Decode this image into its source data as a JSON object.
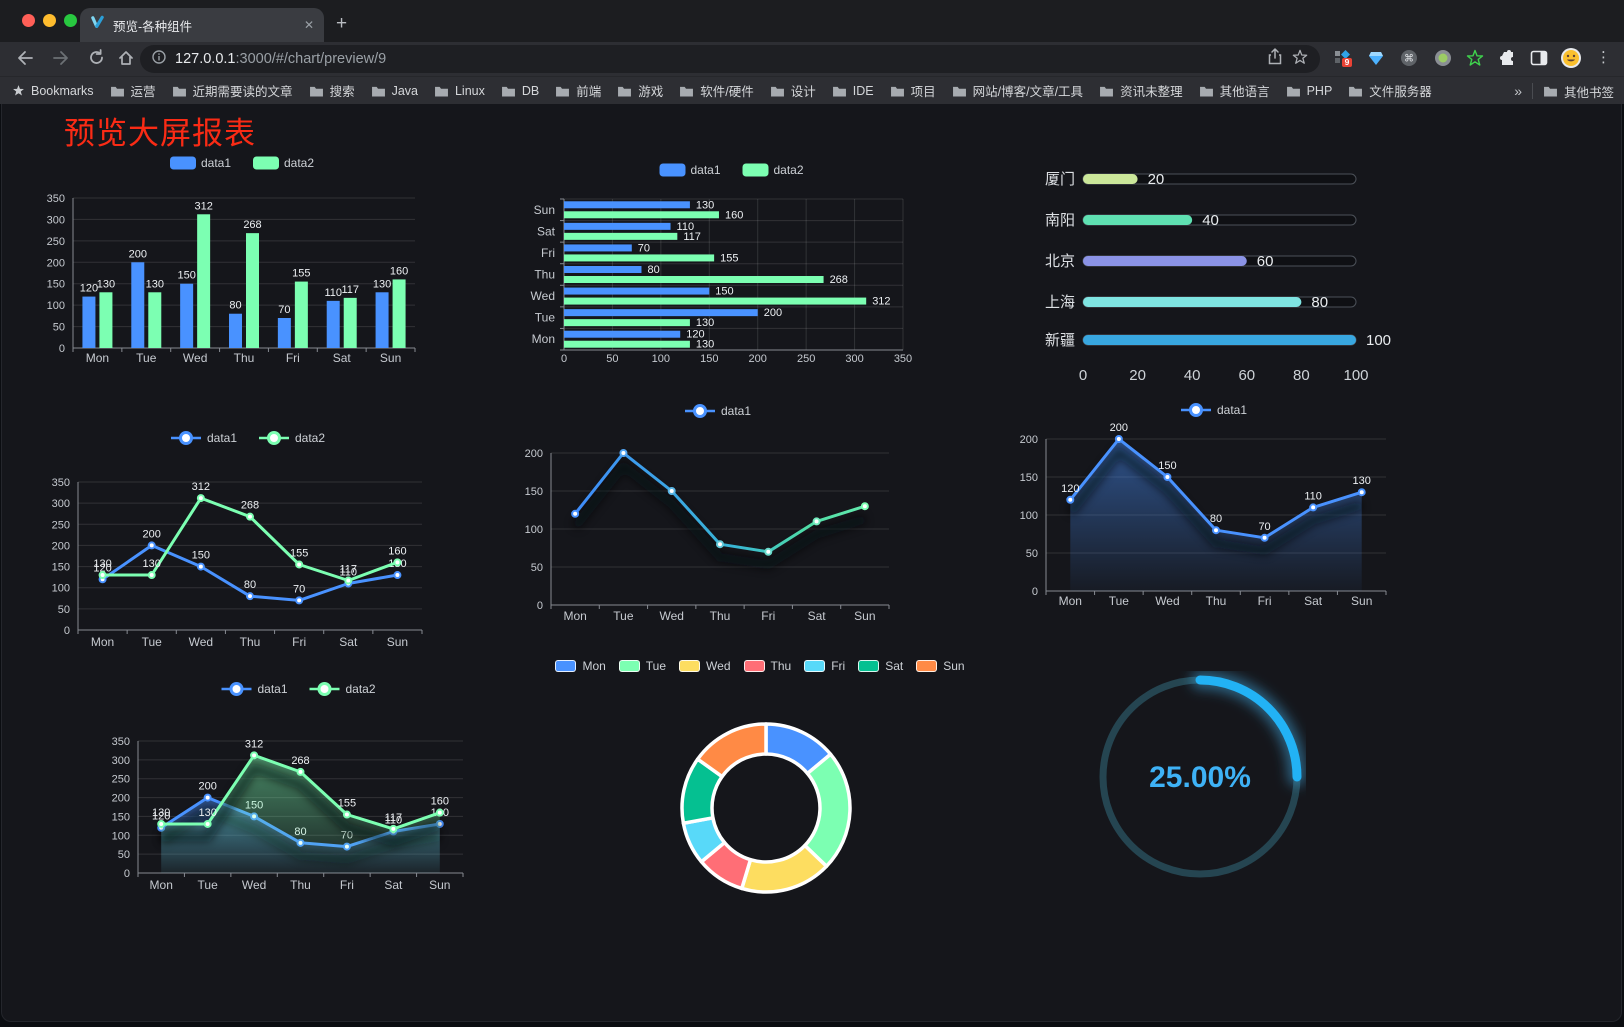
{
  "browser": {
    "tab_title": "预览-各种组件",
    "new_tab": "+",
    "close_tab": "✕",
    "url_host": "127.0.0.1",
    "url_rest": ":3000/#/chart/preview/9",
    "extension_badge": "9",
    "bookmarks_label": "Bookmarks",
    "bookmarks": [
      "运营",
      "近期需要读的文章",
      "搜索",
      "Java",
      "Linux",
      "DB",
      "前端",
      "游戏",
      "软件/硬件",
      "设计",
      "IDE",
      "项目",
      "网站/博客/文章/工具",
      "资讯未整理",
      "其他语言",
      "PHP",
      "文件服务器"
    ],
    "bookmarks_overflow": "»",
    "other_bookmarks": "其他书签"
  },
  "page": {
    "title": "预览大屏报表",
    "title_color": "#fa2b15",
    "background": "#15161b"
  },
  "palette": {
    "data1": "#4992ff",
    "data2": "#7cffb2",
    "axis": "#878b92",
    "grid": "rgba(255,255,255,0.12)",
    "tick_text": "#c6cad0",
    "value_label": "#edf0f3"
  },
  "chart_data": [
    {
      "id": "bar-grouped",
      "type": "bar",
      "orientation": "vertical",
      "categories": [
        "Mon",
        "Tue",
        "Wed",
        "Thu",
        "Fri",
        "Sat",
        "Sun"
      ],
      "series": [
        {
          "name": "data1",
          "color": "#4992ff",
          "values": [
            120,
            200,
            150,
            80,
            70,
            110,
            130
          ]
        },
        {
          "name": "data2",
          "color": "#7cffb2",
          "values": [
            130,
            130,
            312,
            268,
            155,
            117,
            160
          ]
        }
      ],
      "ylim": [
        0,
        350
      ],
      "ytick_step": 50,
      "value_labels": true,
      "legend_position": "top",
      "grid": true
    },
    {
      "id": "bar-horizontal",
      "type": "bar",
      "orientation": "horizontal",
      "categories": [
        "Mon",
        "Tue",
        "Wed",
        "Thu",
        "Fri",
        "Sat",
        "Sun"
      ],
      "display_order_top_to_bottom": [
        "Sun",
        "Sat",
        "Fri",
        "Thu",
        "Wed",
        "Tue",
        "Mon"
      ],
      "series": [
        {
          "name": "data1",
          "color": "#4992ff",
          "values": [
            120,
            200,
            150,
            80,
            70,
            110,
            130
          ]
        },
        {
          "name": "data2",
          "color": "#7cffb2",
          "values": [
            130,
            130,
            312,
            268,
            155,
            117,
            160
          ]
        }
      ],
      "xlim": [
        0,
        350
      ],
      "xtick_step": 50,
      "value_labels": true,
      "legend_position": "top",
      "grid": true
    },
    {
      "id": "capsule-bars",
      "type": "bar",
      "style": "capsule",
      "items": [
        {
          "label": "厦门",
          "value": 20,
          "color": "#cbe79a"
        },
        {
          "label": "南阳",
          "value": 40,
          "color": "#5fe0b2"
        },
        {
          "label": "北京",
          "value": 60,
          "color": "#8b93e6"
        },
        {
          "label": "上海",
          "value": 80,
          "color": "#7fe4e2"
        },
        {
          "label": "新疆",
          "value": 100,
          "color": "#38a7e0"
        }
      ],
      "xlim": [
        0,
        100
      ],
      "xticks": [
        0,
        20,
        40,
        60,
        80,
        100
      ],
      "value_labels": true
    },
    {
      "id": "line-dual",
      "type": "line",
      "categories": [
        "Mon",
        "Tue",
        "Wed",
        "Thu",
        "Fri",
        "Sat",
        "Sun"
      ],
      "series": [
        {
          "name": "data1",
          "color": "#4992ff",
          "values": [
            120,
            200,
            150,
            80,
            70,
            110,
            130
          ]
        },
        {
          "name": "data2",
          "color": "#7cffb2",
          "values": [
            130,
            130,
            312,
            268,
            155,
            117,
            160
          ]
        }
      ],
      "ylim": [
        0,
        350
      ],
      "ytick_step": 50,
      "value_labels": true,
      "legend_position": "top",
      "grid": true
    },
    {
      "id": "line-gradient",
      "type": "line",
      "categories": [
        "Mon",
        "Tue",
        "Wed",
        "Thu",
        "Fri",
        "Sat",
        "Sun"
      ],
      "series": [
        {
          "name": "data1",
          "gradient": [
            "#3f8cfa",
            "#38b6d4",
            "#4fdca6",
            "#63e9ad"
          ],
          "color": "#4992ff",
          "values": [
            120,
            200,
            150,
            80,
            70,
            110,
            130
          ]
        }
      ],
      "ylim": [
        0,
        200
      ],
      "ytick_step": 50,
      "value_labels": false,
      "shadow": true,
      "legend_position": "top",
      "grid": true
    },
    {
      "id": "line-area",
      "type": "area",
      "categories": [
        "Mon",
        "Tue",
        "Wed",
        "Thu",
        "Fri",
        "Sat",
        "Sun"
      ],
      "series": [
        {
          "name": "data1",
          "color": "#4992ff",
          "values": [
            120,
            200,
            150,
            80,
            70,
            110,
            130
          ],
          "area": true
        }
      ],
      "ylim": [
        0,
        200
      ],
      "ytick_step": 50,
      "value_labels": true,
      "shadow": true,
      "legend_position": "top",
      "grid": true
    },
    {
      "id": "line-dual-area",
      "type": "area",
      "categories": [
        "Mon",
        "Tue",
        "Wed",
        "Thu",
        "Fri",
        "Sat",
        "Sun"
      ],
      "series": [
        {
          "name": "data1",
          "color": "#4992ff",
          "values": [
            120,
            200,
            150,
            80,
            70,
            110,
            130
          ],
          "area": true
        },
        {
          "name": "data2",
          "color": "#7cffb2",
          "values": [
            130,
            130,
            312,
            268,
            155,
            117,
            160
          ],
          "area": true
        }
      ],
      "ylim": [
        0,
        350
      ],
      "ytick_step": 50,
      "value_labels": true,
      "shadow": true,
      "legend_position": "top",
      "grid": true
    },
    {
      "id": "donut",
      "type": "pie",
      "inner_radius_ratio": 0.64,
      "categories": [
        "Mon",
        "Tue",
        "Wed",
        "Thu",
        "Fri",
        "Sat",
        "Sun"
      ],
      "values": [
        120,
        200,
        150,
        80,
        70,
        110,
        130
      ],
      "colors": [
        "#4992ff",
        "#7cffb2",
        "#fddd60",
        "#ff6e76",
        "#58d9f9",
        "#05c091",
        "#ff8a45"
      ],
      "border_color": "#ffffff",
      "legend_position": "top"
    },
    {
      "id": "gauge",
      "type": "gauge",
      "value": 25,
      "label": "25.00%",
      "color": "#22b2f5",
      "track_color": "#254551",
      "text_color": "#3eb2f6"
    }
  ]
}
